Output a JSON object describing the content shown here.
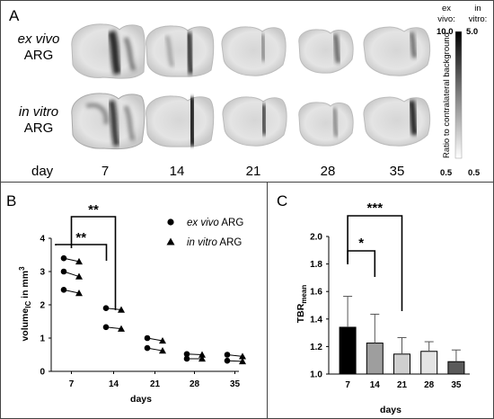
{
  "panel_a": {
    "label": "A",
    "row_labels": [
      {
        "line1": "ex vivo",
        "line2": "ARG"
      },
      {
        "line1": "in vitro",
        "line2": "ARG"
      }
    ],
    "day_label": "day",
    "days": [
      "7",
      "14",
      "21",
      "28",
      "35"
    ],
    "colorbar": {
      "ex_vivo_title": [
        "ex",
        "vivo:"
      ],
      "in_vitro_title": [
        "in",
        "vitro:"
      ],
      "ex_vivo_max": "10.0",
      "in_vitro_max": "5.0",
      "ex_vivo_min": "0.5",
      "in_vitro_min": "0.5",
      "axis_label": "Ratio to contralateral background"
    }
  },
  "chart_data": [
    {
      "type": "scatter",
      "panel": "B",
      "xlabel": "days",
      "ylabel": "volume",
      "ylabel_sub": "IC",
      "ylabel_unit": " in mm",
      "ylabel_sup": "3",
      "xtick_labels": [
        "7",
        "14",
        "21",
        "28",
        "35"
      ],
      "yticks": [
        "0",
        "1",
        "2",
        "3",
        "4"
      ],
      "ylim": [
        0,
        4
      ],
      "legend_position": "top-right",
      "series": [
        {
          "name_italic": "ex vivo",
          "name_rest": " ARG",
          "marker": "circle",
          "points": [
            [
              7,
              3.4
            ],
            [
              7,
              3.0
            ],
            [
              7,
              2.45
            ],
            [
              14,
              1.9
            ],
            [
              14,
              1.33
            ],
            [
              21,
              1.0
            ],
            [
              21,
              0.7
            ],
            [
              28,
              0.52
            ],
            [
              28,
              0.38
            ],
            [
              35,
              0.5
            ],
            [
              35,
              0.32
            ]
          ]
        },
        {
          "name_italic": "in vitro",
          "name_rest": " ARG",
          "marker": "triangle",
          "points": [
            [
              7,
              3.3
            ],
            [
              7,
              2.85
            ],
            [
              7,
              2.35
            ],
            [
              14,
              1.85
            ],
            [
              14,
              1.28
            ],
            [
              21,
              0.92
            ],
            [
              21,
              0.62
            ],
            [
              28,
              0.5
            ],
            [
              28,
              0.38
            ],
            [
              35,
              0.45
            ],
            [
              35,
              0.3
            ]
          ]
        }
      ],
      "pairs": [
        [
          [
            7,
            3.4
          ],
          [
            7,
            3.3
          ]
        ],
        [
          [
            7,
            3.0
          ],
          [
            7,
            2.85
          ]
        ],
        [
          [
            7,
            2.45
          ],
          [
            7,
            2.35
          ]
        ],
        [
          [
            14,
            1.9
          ],
          [
            14,
            1.85
          ]
        ],
        [
          [
            14,
            1.33
          ],
          [
            14,
            1.28
          ]
        ],
        [
          [
            21,
            1.0
          ],
          [
            21,
            0.92
          ]
        ],
        [
          [
            21,
            0.7
          ],
          [
            21,
            0.62
          ]
        ],
        [
          [
            28,
            0.52
          ],
          [
            28,
            0.5
          ]
        ],
        [
          [
            28,
            0.38
          ],
          [
            28,
            0.38
          ]
        ],
        [
          [
            35,
            0.5
          ],
          [
            35,
            0.45
          ]
        ],
        [
          [
            35,
            0.32
          ],
          [
            35,
            0.3
          ]
        ]
      ],
      "significance": [
        {
          "from": "7",
          "to": "14",
          "label": "**",
          "level": "lower"
        },
        {
          "from": "7",
          "to": "14",
          "label": "**",
          "level": "upper"
        }
      ]
    },
    {
      "type": "bar",
      "panel": "C",
      "xlabel": "days",
      "ylabel": "TBR",
      "ylabel_sub": "mean",
      "categories": [
        "7",
        "14",
        "21",
        "28",
        "35"
      ],
      "values": [
        1.34,
        1.225,
        1.145,
        1.165,
        1.09
      ],
      "errors": [
        0.225,
        0.21,
        0.12,
        0.07,
        0.085
      ],
      "colors": [
        "#000000",
        "#9e9e9e",
        "#cfcfcf",
        "#e4e4e4",
        "#5a5a5a"
      ],
      "yticks": [
        "1.0",
        "1.2",
        "1.4",
        "1.6",
        "1.8",
        "2.0"
      ],
      "ylim": [
        1.0,
        2.0
      ],
      "significance": [
        {
          "from": "7",
          "to": "14",
          "label": "*"
        },
        {
          "from": "7",
          "to": "21",
          "label": "***"
        }
      ]
    }
  ],
  "labels": {
    "panel_b": "B",
    "panel_c": "C"
  }
}
